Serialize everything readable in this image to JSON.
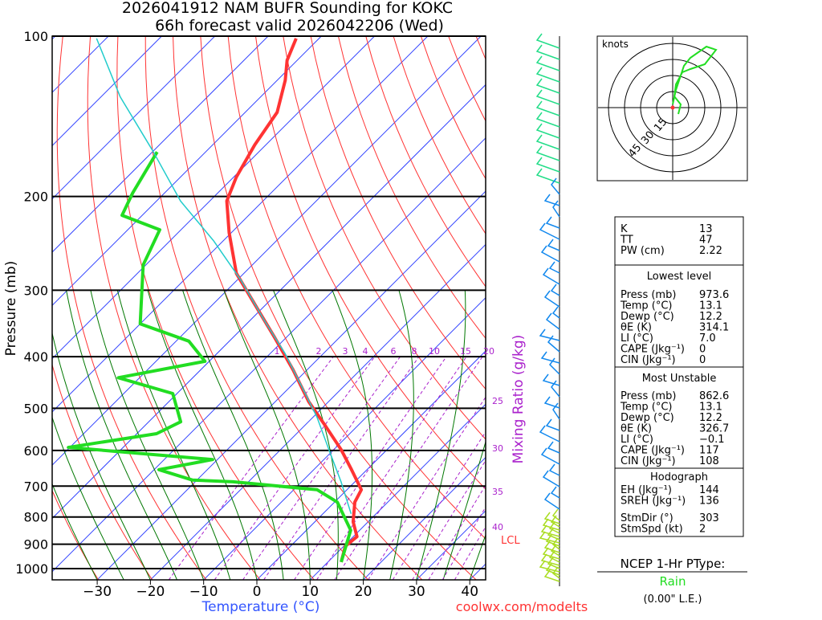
{
  "chart_data": {
    "type": "line",
    "title": "2026041912 NAM BUFR Sounding for KOKC",
    "subtitle": "66h forecast valid 2026042206 (Wed)",
    "xlabel": "Temperature (°C)",
    "ylabel": "Pressure (mb)",
    "y2label": "Mixing Ratio (g/kg)",
    "yscale": "log",
    "ylim": [
      1050,
      100
    ],
    "pressure_ticks": [
      "100",
      "200",
      "300",
      "400",
      "500",
      "600",
      "700",
      "800",
      "900",
      "1000"
    ],
    "temperature_ticks": [
      "−30",
      "−20",
      "−10",
      "0",
      "10",
      "20",
      "30",
      "40"
    ],
    "mixing_ratio_labels": [
      "1",
      "2",
      "3",
      "4",
      "6",
      "8",
      "10",
      "15",
      "20",
      "25",
      "30",
      "35",
      "40"
    ],
    "lcl_label": "LCL",
    "series": [
      {
        "name": "Temperature",
        "color": "#ff3333",
        "p": [
          972,
          908,
          871,
          817,
          750,
          711,
          652,
          598,
          539,
          486,
          423,
          368,
          320,
          279,
          234,
          204,
          184,
          160,
          139,
          121,
          111,
          101
        ],
        "t": [
          12.5,
          10.3,
          10.7,
          7.2,
          3.8,
          2.7,
          -2.9,
          -8.6,
          -16.1,
          -23.7,
          -32.7,
          -42.2,
          -51.9,
          -61.4,
          -70.4,
          -76.8,
          -79.5,
          -82.1,
          -84,
          -88.5,
          -91.9,
          -94.3
        ]
      },
      {
        "name": "Dewpoint",
        "color": "#22dd22",
        "p": [
          972,
          847,
          750,
          711,
          687,
          682,
          652,
          624,
          592,
          558,
          530,
          469,
          438,
          408,
          374,
          347,
          269,
          231,
          217,
          197,
          165
        ],
        "t": [
          12.5,
          8.3,
          0.5,
          -5.6,
          -22.9,
          -30.8,
          -39.1,
          -30.9,
          -60.3,
          -46.3,
          -44,
          -50.8,
          -64,
          -50.8,
          -57.6,
          -70,
          -80.5,
          -84,
          -93.8,
          -96,
          -99.1
        ]
      },
      {
        "name": "Parcel",
        "color": "#22cccc",
        "p": [
          789,
          687,
          598,
          520,
          469,
          394,
          343,
          288,
          242,
          204,
          165,
          130,
          101
        ],
        "t": [
          5.3,
          -2.6,
          -10.9,
          -19.2,
          -25.9,
          -37.3,
          -47.1,
          -59.1,
          -71.9,
          -85.5,
          -99.8,
          -116.4,
          -131.8
        ]
      }
    ]
  },
  "hodograph": {
    "units_label": "knots",
    "ring_labels": [
      "15",
      "30",
      "45"
    ]
  },
  "indices": {
    "rows": [
      [
        "K",
        "13"
      ],
      [
        "TT",
        "47"
      ],
      [
        "PW (cm)",
        "2.22"
      ]
    ],
    "lowest": {
      "title": "Lowest level",
      "rows": [
        [
          "Press (mb)",
          "973.6"
        ],
        [
          "Temp (°C)",
          "13.1"
        ],
        [
          "Dewp (°C)",
          "12.2"
        ],
        [
          "θE (K)",
          "314.1"
        ],
        [
          "LI (°C)",
          "7.0"
        ],
        [
          "CAPE (Jkg⁻¹)",
          "0"
        ],
        [
          "CIN (Jkg⁻¹)",
          "0"
        ]
      ]
    },
    "unstable": {
      "title": "Most Unstable",
      "rows": [
        [
          "Press (mb)",
          "862.6"
        ],
        [
          "Temp (°C)",
          "13.1"
        ],
        [
          "Dewp (°C)",
          "12.2"
        ],
        [
          "θE (K)",
          "326.7"
        ],
        [
          "LI (°C)",
          "−0.1"
        ],
        [
          "CAPE (Jkg⁻¹)",
          "117"
        ],
        [
          "CIN (Jkg⁻¹)",
          "108"
        ]
      ]
    },
    "hodo": {
      "title": "Hodograph",
      "rows": [
        [
          "EH (Jkg⁻¹)",
          "144"
        ],
        [
          "SREH (Jkg⁻¹)",
          "136"
        ],
        [
          "StmDir (°)",
          "303"
        ],
        [
          "StmSpd (kt)",
          "2"
        ]
      ]
    }
  },
  "ptype": {
    "title": "NCEP 1-Hr PType:",
    "value": "Rain",
    "value_color": "#22dd22",
    "amount": "(0.00\" L.E.)"
  },
  "credit": "coolwx.com/modelts"
}
